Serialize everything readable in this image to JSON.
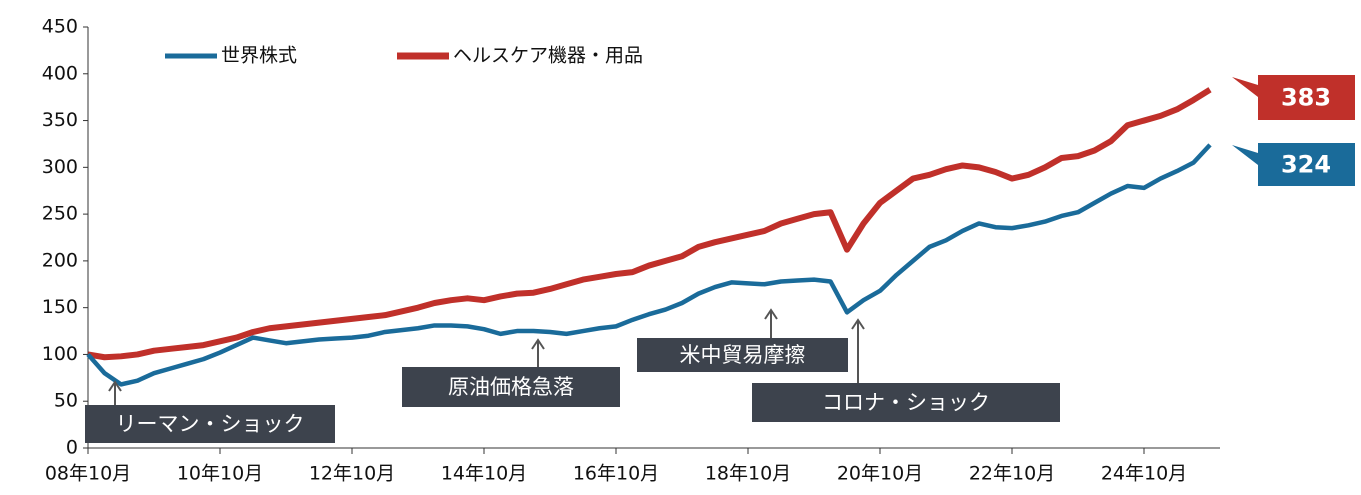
{
  "chart_data": {
    "type": "line",
    "categories": [
      "08年10月",
      null,
      null,
      null,
      null,
      null,
      null,
      null,
      "10年10月",
      null,
      null,
      null,
      null,
      null,
      null,
      null,
      "12年10月",
      null,
      null,
      null,
      null,
      null,
      null,
      null,
      "14年10月",
      null,
      null,
      null,
      null,
      null,
      null,
      null,
      "16年10月",
      null,
      null,
      null,
      null,
      null,
      null,
      null,
      "18年10月",
      null,
      null,
      null,
      null,
      null,
      null,
      null,
      "20年10月",
      null,
      null,
      null,
      null,
      null,
      null,
      null,
      "22年10月",
      null,
      null,
      null,
      null,
      null,
      null,
      null,
      "24年10月",
      null,
      null,
      null,
      null
    ],
    "series": [
      {
        "name": "世界株式",
        "color": "#1a6b9a",
        "values": [
          100,
          80,
          68,
          72,
          80,
          85,
          90,
          95,
          102,
          110,
          118,
          115,
          112,
          114,
          116,
          117,
          118,
          120,
          124,
          126,
          128,
          131,
          131,
          130,
          127,
          122,
          125,
          125,
          124,
          122,
          125,
          128,
          130,
          137,
          143,
          148,
          155,
          165,
          172,
          177,
          176,
          175,
          178,
          179,
          180,
          178,
          145,
          158,
          168,
          185,
          200,
          215,
          222,
          232,
          240,
          236,
          235,
          238,
          242,
          248,
          252,
          262,
          272,
          280,
          278,
          288,
          296,
          305,
          324
        ]
      },
      {
        "name": "ヘルスケア機器・用品",
        "color": "#c0302a",
        "values": [
          100,
          97,
          98,
          100,
          104,
          106,
          108,
          110,
          114,
          118,
          124,
          128,
          130,
          132,
          134,
          136,
          138,
          140,
          142,
          146,
          150,
          155,
          158,
          160,
          158,
          162,
          165,
          166,
          170,
          175,
          180,
          183,
          186,
          188,
          195,
          200,
          205,
          215,
          220,
          224,
          228,
          232,
          240,
          245,
          250,
          252,
          212,
          240,
          262,
          275,
          288,
          292,
          298,
          302,
          300,
          295,
          288,
          292,
          300,
          310,
          312,
          318,
          328,
          345,
          350,
          355,
          362,
          372,
          383
        ]
      }
    ],
    "ylim": [
      0,
      450
    ],
    "yticks": [
      0,
      50,
      100,
      150,
      200,
      250,
      300,
      350,
      400,
      450
    ],
    "annotations": [
      "リーマン・ショック",
      "原油価格急落",
      "米中貿易摩擦",
      "コロナ・ショック"
    ]
  }
}
